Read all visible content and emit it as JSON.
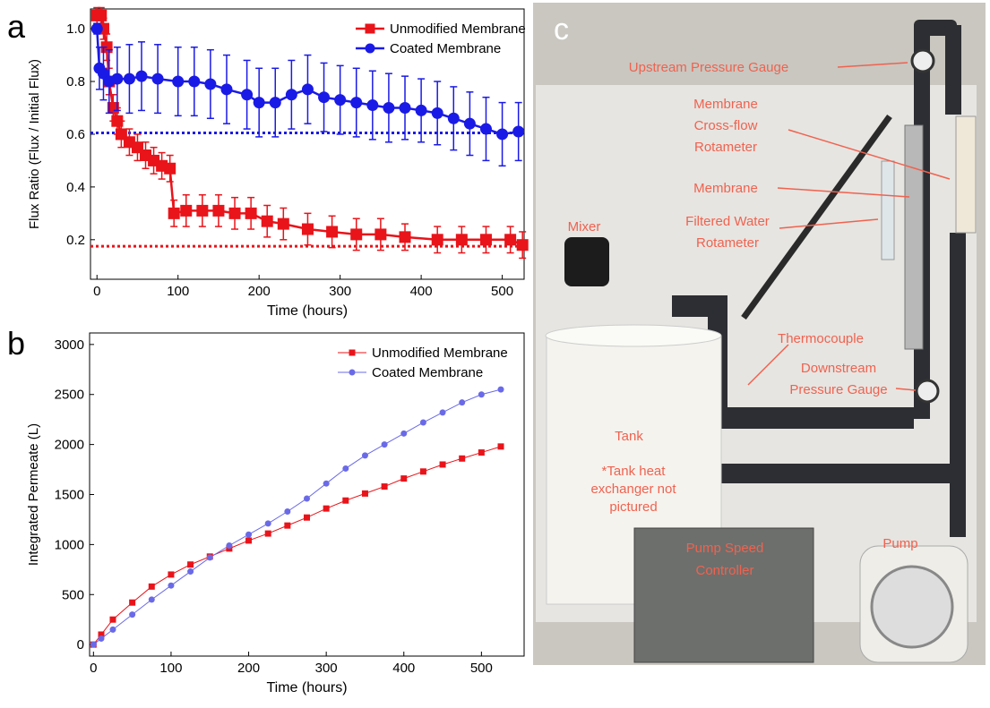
{
  "chart_data": [
    {
      "type": "line",
      "panel_label": "a",
      "xlabel": "Time (hours)",
      "ylabel": "Flux Ratio (Flux / Initial Flux)",
      "xlim": [
        -8,
        527
      ],
      "ylim": [
        0.05,
        1.075
      ],
      "xticks": [
        0,
        100,
        200,
        300,
        400,
        500
      ],
      "yticks": [
        0.2,
        0.4,
        0.6,
        0.8,
        {
          "value": 1,
          "label": "1.0"
        }
      ],
      "legend": "upper right",
      "series": [
        {
          "name": "Unmodified Membrane",
          "color": "#e8141a",
          "marker": "square",
          "x": [
            0,
            5,
            8,
            12,
            15,
            20,
            25,
            30,
            40,
            50,
            60,
            70,
            80,
            90,
            95,
            110,
            130,
            150,
            170,
            190,
            210,
            230,
            260,
            290,
            320,
            350,
            380,
            420,
            450,
            480,
            510,
            525
          ],
          "values": [
            1.05,
            1.05,
            1.0,
            0.93,
            0.8,
            0.7,
            0.65,
            0.6,
            0.57,
            0.55,
            0.52,
            0.5,
            0.48,
            0.47,
            0.3,
            0.31,
            0.31,
            0.31,
            0.3,
            0.3,
            0.27,
            0.26,
            0.24,
            0.23,
            0.22,
            0.22,
            0.21,
            0.2,
            0.2,
            0.2,
            0.2,
            0.18
          ],
          "errors": [
            0.03,
            0.03,
            0.04,
            0.05,
            0.05,
            0.05,
            0.05,
            0.05,
            0.05,
            0.05,
            0.05,
            0.05,
            0.05,
            0.05,
            0.05,
            0.06,
            0.06,
            0.06,
            0.06,
            0.06,
            0.06,
            0.06,
            0.06,
            0.06,
            0.06,
            0.06,
            0.05,
            0.05,
            0.05,
            0.05,
            0.05,
            0.05
          ]
        },
        {
          "name": "Coated Membrane",
          "color": "#1a1ae6",
          "marker": "circle",
          "x": [
            0,
            3,
            8,
            15,
            25,
            40,
            55,
            75,
            100,
            120,
            140,
            160,
            185,
            200,
            220,
            240,
            260,
            280,
            300,
            320,
            340,
            360,
            380,
            400,
            420,
            440,
            460,
            480,
            500,
            520
          ],
          "values": [
            1.0,
            0.85,
            0.83,
            0.8,
            0.81,
            0.81,
            0.82,
            0.81,
            0.8,
            0.8,
            0.79,
            0.77,
            0.75,
            0.72,
            0.72,
            0.75,
            0.77,
            0.74,
            0.73,
            0.72,
            0.71,
            0.7,
            0.7,
            0.69,
            0.68,
            0.66,
            0.64,
            0.62,
            0.6,
            0.61
          ],
          "errors": [
            0.02,
            0.08,
            0.1,
            0.12,
            0.12,
            0.13,
            0.13,
            0.13,
            0.13,
            0.13,
            0.13,
            0.13,
            0.13,
            0.13,
            0.13,
            0.13,
            0.13,
            0.13,
            0.13,
            0.13,
            0.13,
            0.13,
            0.12,
            0.12,
            0.12,
            0.12,
            0.12,
            0.12,
            0.12,
            0.11
          ]
        }
      ],
      "reference_lines": [
        {
          "value": 0.605,
          "color": "#1a1ae6"
        },
        {
          "value": 0.175,
          "color": "#e8141a"
        }
      ]
    },
    {
      "type": "line",
      "panel_label": "b",
      "xlabel": "Time (hours)",
      "ylabel": "Integrated Permeate (L)",
      "xlim": [
        -5,
        555
      ],
      "ylim": [
        -115,
        3115
      ],
      "xticks": [
        0,
        100,
        200,
        300,
        400,
        500
      ],
      "yticks": [
        0,
        500,
        1000,
        1500,
        2000,
        2500,
        3000
      ],
      "legend": "upper right",
      "series": [
        {
          "name": "Unmodified Membrane",
          "color": "#e8141a",
          "marker": "square",
          "x": [
            0,
            10,
            25,
            50,
            75,
            100,
            125,
            150,
            175,
            200,
            225,
            250,
            275,
            300,
            325,
            350,
            375,
            400,
            425,
            450,
            475,
            500,
            525
          ],
          "values": [
            0,
            100,
            250,
            420,
            580,
            700,
            800,
            880,
            960,
            1040,
            1110,
            1190,
            1270,
            1360,
            1440,
            1510,
            1580,
            1660,
            1730,
            1800,
            1860,
            1920,
            1980
          ]
        },
        {
          "name": "Coated Membrane",
          "color": "#6a6ae8",
          "marker": "circle",
          "x": [
            0,
            10,
            25,
            50,
            75,
            100,
            125,
            150,
            175,
            200,
            225,
            250,
            275,
            300,
            325,
            350,
            375,
            400,
            425,
            450,
            475,
            500,
            525
          ],
          "values": [
            0,
            60,
            150,
            300,
            450,
            590,
            730,
            870,
            990,
            1100,
            1210,
            1330,
            1460,
            1610,
            1760,
            1890,
            2000,
            2110,
            2220,
            2320,
            2420,
            2500,
            2550
          ]
        }
      ]
    }
  ],
  "photo": {
    "panel_label": "c",
    "labels": {
      "upstream": "Upstream Pressure Gauge",
      "crossflow": [
        "Membrane",
        "Cross-flow",
        "Rotameter"
      ],
      "membrane": "Membrane",
      "filtered": [
        "Filtered Water",
        "Rotameter"
      ],
      "mixer": "Mixer",
      "thermocouple": "Thermocouple",
      "downstream": [
        "Downstream",
        "Pressure Gauge"
      ],
      "tank": "Tank",
      "tank_note": [
        "*Tank heat",
        "exchanger not",
        "pictured"
      ],
      "controller": [
        "Pump Speed",
        "Controller"
      ],
      "pump": "Pump"
    }
  }
}
